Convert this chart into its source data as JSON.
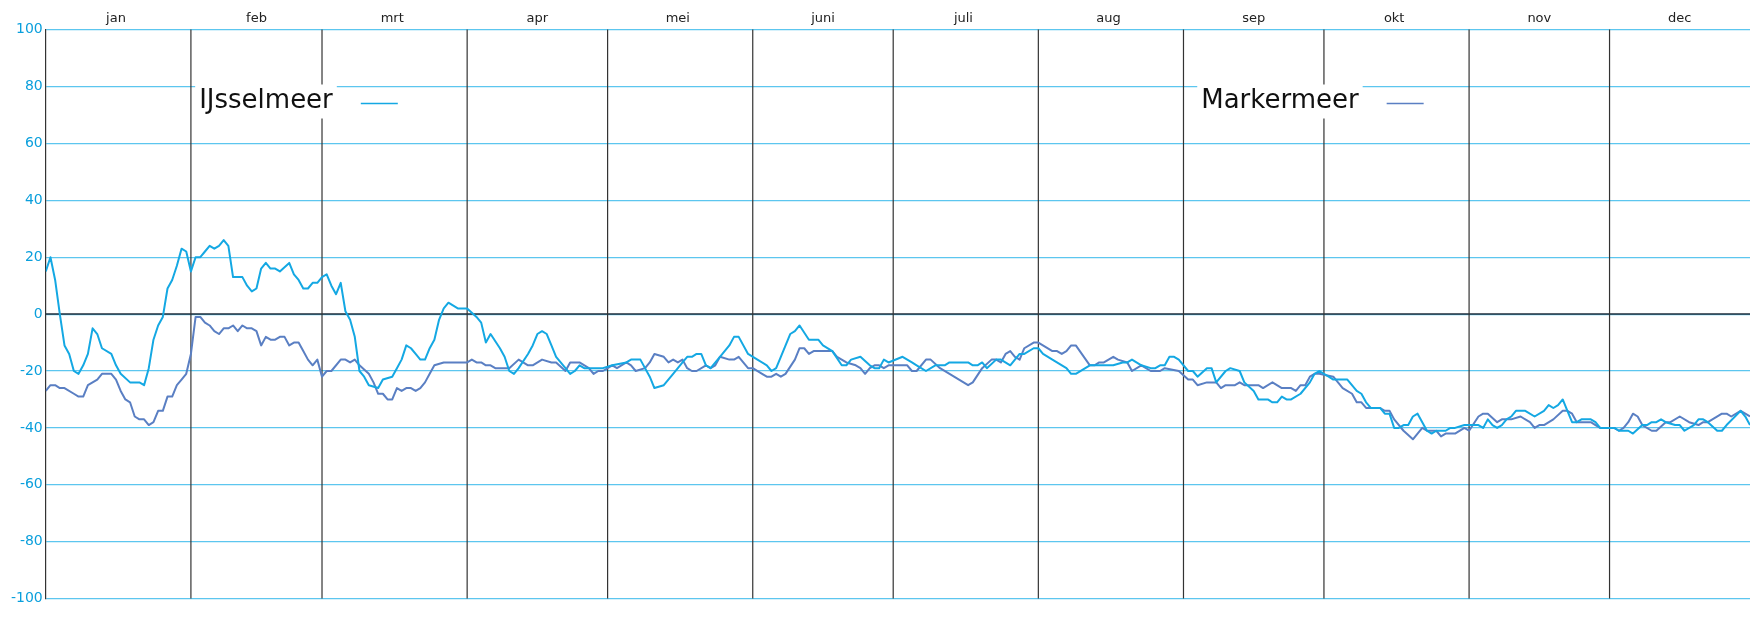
{
  "chart_data": {
    "type": "line",
    "xlim": [
      "--01-01",
      "--12-31"
    ],
    "xticks": [
      {
        "value": "--01-16",
        "label": "jan"
      },
      {
        "value": "--02-15",
        "label": "feb"
      },
      {
        "value": "--03-16",
        "label": "mrt"
      },
      {
        "value": "--04-16",
        "label": "apr"
      },
      {
        "value": "--05-16",
        "label": "mei"
      },
      {
        "value": "--06-16",
        "label": "juni"
      },
      {
        "value": "--07-16",
        "label": "juli"
      },
      {
        "value": "--08-16",
        "label": "aug"
      },
      {
        "value": "--09-16",
        "label": "sep"
      },
      {
        "value": "--10-16",
        "label": "okt"
      },
      {
        "value": "--11-16",
        "label": "nov"
      },
      {
        "value": "--12-16",
        "label": "dec"
      }
    ],
    "ylim": [
      -100,
      100
    ],
    "yticks": [
      -100,
      -80,
      -60,
      -40,
      -20,
      0,
      20,
      40,
      60,
      80,
      100
    ],
    "grid": "y",
    "legend": "top",
    "marker": "none",
    "line_style": "solid",
    "ref_lines": [
      {
        "axis": "y",
        "value": 0,
        "color": "#1f2d3a"
      },
      {
        "axis": "x",
        "value": "--02-01",
        "color": "#333333"
      },
      {
        "axis": "x",
        "value": "--03-01",
        "color": "#333333"
      },
      {
        "axis": "x",
        "value": "--04-01",
        "color": "#333333"
      },
      {
        "axis": "x",
        "value": "--05-01",
        "color": "#333333"
      },
      {
        "axis": "x",
        "value": "--06-01",
        "color": "#333333"
      },
      {
        "axis": "x",
        "value": "--07-01",
        "color": "#333333"
      },
      {
        "axis": "x",
        "value": "--08-01",
        "color": "#333333"
      },
      {
        "axis": "x",
        "value": "--09-01",
        "color": "#333333"
      },
      {
        "axis": "x",
        "value": "--10-01",
        "color": "#333333"
      },
      {
        "axis": "x",
        "value": "--11-01",
        "color": "#333333"
      },
      {
        "axis": "x",
        "value": "--12-01",
        "color": "#333333"
      }
    ],
    "series": [
      {
        "name": "IJsselmeer",
        "color": "#14a8e3",
        "x": [
          "--01-01",
          "--01-02",
          "--01-03",
          "--01-04",
          "--01-05",
          "--01-06",
          "--01-07",
          "--01-08",
          "--01-09",
          "--01-10",
          "--01-11",
          "--01-12",
          "--01-13",
          "--01-15",
          "--01-16",
          "--01-17",
          "--01-19",
          "--01-21",
          "--01-22",
          "--01-23",
          "--01-24",
          "--01-25",
          "--01-26",
          "--01-27",
          "--01-28",
          "--01-29",
          "--01-30",
          "--01-31",
          "--02-01",
          "--02-02",
          "--02-03",
          "--02-04",
          "--02-05",
          "--02-06",
          "--02-07",
          "--02-08",
          "--02-09",
          "--02-10",
          "--02-12",
          "--02-13",
          "--02-14",
          "--02-15",
          "--02-16",
          "--02-17",
          "--02-18",
          "--02-19",
          "--02-20",
          "--02-22",
          "--02-23",
          "--02-24",
          "--02-25",
          "--02-26",
          "--02-27",
          "--02-28",
          "--03-01",
          "--03-02",
          "--03-03",
          "--03-04",
          "--03-05",
          "--03-06",
          "--03-07",
          "--03-08",
          "--03-09",
          "--03-10",
          "--03-11",
          "--03-13",
          "--03-14",
          "--03-16",
          "--03-17",
          "--03-18",
          "--03-19",
          "--03-20",
          "--03-21",
          "--03-22",
          "--03-23",
          "--03-24",
          "--03-25",
          "--03-26",
          "--03-27",
          "--03-28",
          "--03-30",
          "--04-01",
          "--04-03",
          "--04-04",
          "--04-05",
          "--04-06",
          "--04-08",
          "--04-09",
          "--04-10",
          "--04-11",
          "--04-12",
          "--04-14",
          "--04-15",
          "--04-16",
          "--04-17",
          "--04-18",
          "--04-19",
          "--04-20",
          "--04-22",
          "--04-23",
          "--04-24",
          "--04-25",
          "--04-26",
          "--04-30",
          "--05-02",
          "--05-05",
          "--05-06",
          "--05-08",
          "--05-10",
          "--05-11",
          "--05-13",
          "--05-15",
          "--05-17",
          "--05-18",
          "--05-19",
          "--05-20",
          "--05-21",
          "--05-22",
          "--05-23",
          "--05-25",
          "--05-27",
          "--05-28",
          "--05-29",
          "--05-31",
          "--06-02",
          "--06-04",
          "--06-05",
          "--06-06",
          "--06-07",
          "--06-09",
          "--06-10",
          "--06-11",
          "--06-13",
          "--06-15",
          "--06-16",
          "--06-18",
          "--06-20",
          "--06-21",
          "--06-22",
          "--06-24",
          "--06-26",
          "--06-27",
          "--06-28",
          "--06-29",
          "--06-30",
          "--07-03",
          "--07-05",
          "--07-06",
          "--07-08",
          "--07-10",
          "--07-12",
          "--07-13",
          "--07-17",
          "--07-18",
          "--07-19",
          "--07-20",
          "--07-21",
          "--07-23",
          "--07-24",
          "--07-26",
          "--07-28",
          "--07-29",
          "--07-31",
          "--08-01",
          "--08-02",
          "--08-04",
          "--08-07",
          "--08-08",
          "--08-09",
          "--08-12",
          "--08-17",
          "--08-19",
          "--08-20",
          "--08-21",
          "--08-23",
          "--08-25",
          "--08-26",
          "--08-27",
          "--08-28",
          "--08-29",
          "--08-30",
          "--08-31",
          "--09-02",
          "--09-03",
          "--09-04",
          "--09-06",
          "--09-07",
          "--09-08",
          "--09-10",
          "--09-11",
          "--09-13",
          "--09-14",
          "--09-16",
          "--09-17",
          "--09-19",
          "--09-20",
          "--09-21",
          "--09-22",
          "--09-23",
          "--09-24",
          "--09-26",
          "--09-28",
          "--09-29",
          "--09-30",
          "--10-02",
          "--10-03",
          "--10-06",
          "--10-08",
          "--10-09",
          "--10-10",
          "--10-11",
          "--10-13",
          "--10-14",
          "--10-15",
          "--10-16",
          "--10-17",
          "--10-18",
          "--10-19",
          "--10-20",
          "--10-21",
          "--10-22",
          "--10-23",
          "--10-24",
          "--10-25",
          "--10-26",
          "--10-27",
          "--10-28",
          "--10-29",
          "--10-31",
          "--11-01",
          "--11-03",
          "--11-04",
          "--11-05",
          "--11-06",
          "--11-07",
          "--11-08",
          "--11-09",
          "--11-10",
          "--11-11",
          "--11-13",
          "--11-15",
          "--11-17",
          "--11-18",
          "--11-19",
          "--11-20",
          "--11-21",
          "--11-22",
          "--11-23",
          "--11-24",
          "--11-25",
          "--11-27",
          "--11-28",
          "--11-29",
          "--12-02",
          "--12-03",
          "--12-05",
          "--12-06",
          "--12-08",
          "--12-09",
          "--12-10",
          "--12-11",
          "--12-12",
          "--12-13",
          "--12-15",
          "--12-16",
          "--12-17",
          "--12-19",
          "--12-20",
          "--12-21",
          "--12-22",
          "--12-24",
          "--12-25",
          "--12-26",
          "--12-29",
          "--12-30",
          "--12-31"
        ],
        "values": [
          15,
          20,
          12,
          0,
          -11,
          -14,
          -20,
          -21,
          -18,
          -14,
          -5,
          -7,
          -12,
          -14,
          -18,
          -21,
          -24,
          -24,
          -25,
          -19,
          -9,
          -4,
          -1,
          9,
          12,
          17,
          23,
          22,
          15,
          20,
          20,
          22,
          24,
          23,
          24,
          26,
          24,
          13,
          13,
          10,
          8,
          9,
          16,
          18,
          16,
          16,
          15,
          18,
          14,
          12,
          9,
          9,
          11,
          11,
          13,
          14,
          10,
          7,
          11,
          1,
          -2,
          -8,
          -20,
          -22,
          -25,
          -26,
          -23,
          -22,
          -19,
          -16,
          -11,
          -12,
          -14,
          -16,
          -16,
          -12,
          -9,
          -2,
          2,
          4,
          2,
          2,
          -1,
          -3,
          -10,
          -7,
          -12,
          -15,
          -20,
          -21,
          -19,
          -14,
          -11,
          -7,
          -6,
          -7,
          -11,
          -15,
          -19,
          -21,
          -20,
          -18,
          -19,
          -19,
          -18,
          -17,
          -16,
          -16,
          -22,
          -26,
          -25,
          -21,
          -17,
          -15,
          -15,
          -14,
          -14,
          -18,
          -19,
          -15,
          -11,
          -8,
          -8,
          -14,
          -16,
          -18,
          -20,
          -19,
          -15,
          -7,
          -6,
          -4,
          -9,
          -9,
          -11,
          -13,
          -18,
          -18,
          -16,
          -15,
          -18,
          -19,
          -19,
          -16,
          -17,
          -15,
          -17,
          -18,
          -20,
          -18,
          -18,
          -17,
          -17,
          -18,
          -18,
          -17,
          -19,
          -16,
          -16,
          -18,
          -14,
          -14,
          -12,
          -12,
          -14,
          -16,
          -19,
          -21,
          -21,
          -18,
          -18,
          -17,
          -17,
          -16,
          -18,
          -19,
          -19,
          -18,
          -18,
          -15,
          -15,
          -16,
          -20,
          -20,
          -22,
          -19,
          -19,
          -24,
          -20,
          -19,
          -20,
          -24,
          -27,
          -30,
          -30,
          -31,
          -31,
          -29,
          -30,
          -30,
          -28,
          -24,
          -21,
          -20,
          -22,
          -23,
          -23,
          -27,
          -28,
          -31,
          -33,
          -33,
          -35,
          -35,
          -40,
          -40,
          -39,
          -39,
          -36,
          -35,
          -38,
          -41,
          -42,
          -41,
          -41,
          -41,
          -40,
          -40,
          -39,
          -39,
          -39,
          -40,
          -37,
          -39,
          -40,
          -39,
          -37,
          -36,
          -34,
          -34,
          -36,
          -34,
          -32,
          -33,
          -32,
          -30,
          -34,
          -38,
          -38,
          -37,
          -37,
          -38,
          -40,
          -40,
          -41,
          -41,
          -42,
          -39,
          -39,
          -38,
          -38,
          -37,
          -38,
          -39,
          -39,
          -41,
          -39,
          -37,
          -37,
          -38,
          -41,
          -41,
          -39,
          -34,
          -36,
          -39
        ]
      },
      {
        "name": "Markermeer",
        "color": "#5a7fc3",
        "x": [
          "--01-01",
          "--01-02",
          "--01-03",
          "--01-04",
          "--01-05",
          "--01-07",
          "--01-08",
          "--01-09",
          "--01-10",
          "--01-12",
          "--01-13",
          "--01-15",
          "--01-16",
          "--01-17",
          "--01-18",
          "--01-19",
          "--01-20",
          "--01-21",
          "--01-22",
          "--01-23",
          "--01-24",
          "--01-25",
          "--01-26",
          "--01-27",
          "--01-28",
          "--01-29",
          "--01-30",
          "--01-31",
          "--02-01",
          "--02-02",
          "--02-03",
          "--02-04",
          "--02-05",
          "--02-06",
          "--02-07",
          "--02-08",
          "--02-09",
          "--02-10",
          "--02-11",
          "--02-12",
          "--02-13",
          "--02-14",
          "--02-15",
          "--02-16",
          "--02-17",
          "--02-18",
          "--02-19",
          "--02-20",
          "--02-21",
          "--02-22",
          "--02-23",
          "--02-24",
          "--02-25",
          "--02-26",
          "--02-27",
          "--02-28",
          "--03-01",
          "--03-02",
          "--03-03",
          "--03-05",
          "--03-06",
          "--03-07",
          "--03-08",
          "--03-09",
          "--03-11",
          "--03-12",
          "--03-13",
          "--03-14",
          "--03-15",
          "--03-16",
          "--03-17",
          "--03-18",
          "--03-19",
          "--03-20",
          "--03-21",
          "--03-22",
          "--03-23",
          "--03-24",
          "--03-25",
          "--03-27",
          "--03-31",
          "--04-01",
          "--04-02",
          "--04-03",
          "--04-04",
          "--04-05",
          "--04-06",
          "--04-07",
          "--04-10",
          "--04-12",
          "--04-14",
          "--04-15",
          "--04-17",
          "--04-19",
          "--04-20",
          "--04-22",
          "--04-23",
          "--04-25",
          "--04-27",
          "--04-28",
          "--04-29",
          "--04-30",
          "--05-02",
          "--05-03",
          "--05-05",
          "--05-06",
          "--05-07",
          "--05-09",
          "--05-10",
          "--05-11",
          "--05-13",
          "--05-14",
          "--05-15",
          "--05-16",
          "--05-17",
          "--05-18",
          "--05-19",
          "--05-20",
          "--05-22",
          "--05-23",
          "--05-24",
          "--05-25",
          "--05-27",
          "--05-28",
          "--05-29",
          "--05-31",
          "--06-01",
          "--06-03",
          "--06-04",
          "--06-05",
          "--06-06",
          "--06-07",
          "--06-08",
          "--06-10",
          "--06-11",
          "--06-12",
          "--06-13",
          "--06-14",
          "--06-18",
          "--06-19",
          "--06-21",
          "--06-23",
          "--06-24",
          "--06-25",
          "--06-26",
          "--06-27",
          "--06-28",
          "--06-29",
          "--06-30",
          "--07-04",
          "--07-05",
          "--07-06",
          "--07-08",
          "--07-09",
          "--07-11",
          "--07-17",
          "--07-18",
          "--07-20",
          "--07-22",
          "--07-23",
          "--07-24",
          "--07-25",
          "--07-26",
          "--07-27",
          "--07-28",
          "--07-29",
          "--07-31",
          "--08-01",
          "--08-04",
          "--08-05",
          "--08-06",
          "--08-07",
          "--08-08",
          "--08-09",
          "--08-12",
          "--08-13",
          "--08-14",
          "--08-15",
          "--08-17",
          "--08-18",
          "--08-20",
          "--08-21",
          "--08-23",
          "--08-25",
          "--08-27",
          "--08-28",
          "--08-31",
          "--09-02",
          "--09-03",
          "--09-04",
          "--09-06",
          "--09-08",
          "--09-09",
          "--09-10",
          "--09-12",
          "--09-13",
          "--09-14",
          "--09-15",
          "--09-17",
          "--09-18",
          "--09-20",
          "--09-22",
          "--09-24",
          "--09-25",
          "--09-26",
          "--09-27",
          "--09-28",
          "--09-29",
          "--09-30",
          "--10-03",
          "--10-05",
          "--10-07",
          "--10-08",
          "--10-09",
          "--10-10",
          "--10-13",
          "--10-14",
          "--10-15",
          "--10-16",
          "--10-18",
          "--10-20",
          "--10-22",
          "--10-23",
          "--10-25",
          "--10-26",
          "--10-27",
          "--10-29",
          "--10-31",
          "--11-01",
          "--11-03",
          "--11-04",
          "--11-05",
          "--11-07",
          "--11-08",
          "--11-10",
          "--11-12",
          "--11-14",
          "--11-15",
          "--11-16",
          "--11-17",
          "--11-19",
          "--11-21",
          "--11-22",
          "--11-23",
          "--11-24",
          "--11-27",
          "--11-28",
          "--11-29",
          "--12-02",
          "--12-03",
          "--12-04",
          "--12-05",
          "--12-06",
          "--12-07",
          "--12-08",
          "--12-10",
          "--12-11",
          "--12-13",
          "--12-14",
          "--12-16",
          "--12-18",
          "--12-20",
          "--12-21",
          "--12-22",
          "--12-25",
          "--12-26",
          "--12-27",
          "--12-29",
          "--12-30",
          "--12-31"
        ],
        "values": [
          -27,
          -25,
          -25,
          -26,
          -26,
          -28,
          -29,
          -29,
          -25,
          -23,
          -21,
          -21,
          -23,
          -27,
          -30,
          -31,
          -36,
          -37,
          -37,
          -39,
          -38,
          -34,
          -34,
          -29,
          -29,
          -25,
          -23,
          -21,
          -14,
          -1,
          -1,
          -3,
          -4,
          -6,
          -7,
          -5,
          -5,
          -4,
          -6,
          -4,
          -5,
          -5,
          -6,
          -11,
          -8,
          -9,
          -9,
          -8,
          -8,
          -11,
          -10,
          -10,
          -13,
          -16,
          -18,
          -16,
          -22,
          -20,
          -20,
          -16,
          -16,
          -17,
          -16,
          -18,
          -21,
          -24,
          -28,
          -28,
          -30,
          -30,
          -26,
          -27,
          -26,
          -26,
          -27,
          -26,
          -24,
          -21,
          -18,
          -17,
          -17,
          -17,
          -16,
          -17,
          -17,
          -18,
          -18,
          -19,
          -19,
          -16,
          -18,
          -18,
          -16,
          -17,
          -17,
          -20,
          -17,
          -17,
          -19,
          -21,
          -20,
          -20,
          -18,
          -19,
          -17,
          -18,
          -20,
          -19,
          -17,
          -14,
          -15,
          -17,
          -16,
          -17,
          -16,
          -19,
          -20,
          -20,
          -18,
          -19,
          -18,
          -15,
          -16,
          -16,
          -15,
          -19,
          -19,
          -21,
          -22,
          -22,
          -21,
          -22,
          -21,
          -16,
          -12,
          -12,
          -14,
          -13,
          -13,
          -15,
          -17,
          -18,
          -19,
          -21,
          -19,
          -18,
          -18,
          -19,
          -18,
          -18,
          -20,
          -20,
          -16,
          -16,
          -19,
          -25,
          -24,
          -19,
          -16,
          -16,
          -17,
          -14,
          -13,
          -15,
          -16,
          -12,
          -10,
          -10,
          -13,
          -13,
          -14,
          -13,
          -11,
          -11,
          -18,
          -18,
          -17,
          -17,
          -15,
          -16,
          -17,
          -20,
          -18,
          -20,
          -20,
          -19,
          -20,
          -23,
          -23,
          -25,
          -24,
          -24,
          -26,
          -25,
          -25,
          -24,
          -25,
          -25,
          -25,
          -26,
          -24,
          -26,
          -26,
          -27,
          -25,
          -25,
          -22,
          -21,
          -21,
          -22,
          -26,
          -28,
          -31,
          -31,
          -33,
          -33,
          -34,
          -34,
          -37,
          -41,
          -44,
          -40,
          -41,
          -41,
          -43,
          -42,
          -42,
          -40,
          -41,
          -36,
          -35,
          -35,
          -38,
          -37,
          -37,
          -36,
          -38,
          -40,
          -39,
          -39,
          -37,
          -34,
          -34,
          -35,
          -38,
          -38,
          -39,
          -40,
          -40,
          -41,
          -40,
          -38,
          -35,
          -36,
          -39,
          -41,
          -41,
          -38,
          -38,
          -36,
          -38,
          -39,
          -38,
          -38,
          -35,
          -35,
          -36,
          -34,
          -35,
          -36
        ]
      }
    ]
  }
}
